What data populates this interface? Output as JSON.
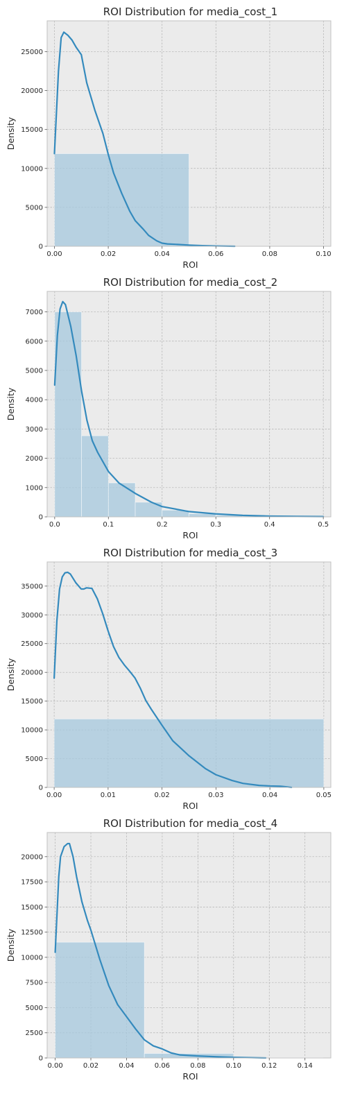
{
  "colors": {
    "panel_bg": "#ebebeb",
    "grid": "#b0b0b0",
    "bar_fill": "#a6c8dd",
    "kde_line": "#348abd",
    "frame": "#c2c2c2",
    "text": "#262626"
  },
  "chart_data": [
    {
      "type": "bar",
      "title": "ROI Distribution for media_cost_1",
      "xlabel": "ROI",
      "ylabel": "Density",
      "xlim": [
        -0.0027,
        0.1027
      ],
      "ylim": [
        0,
        28960
      ],
      "xticks": [
        0.0,
        0.02,
        0.04,
        0.06,
        0.08,
        0.1
      ],
      "xtick_labels": [
        "0.00",
        "0.02",
        "0.04",
        "0.06",
        "0.08",
        "0.10"
      ],
      "yticks": [
        0,
        5000,
        10000,
        15000,
        20000,
        25000
      ],
      "ytick_labels": [
        "0",
        "5000",
        "10000",
        "15000",
        "20000",
        "25000"
      ],
      "grid": true,
      "bars": [
        {
          "x0": 0.0,
          "x1": 0.05,
          "height": 11900
        }
      ],
      "kde": {
        "x": [
          0.0,
          0.0015,
          0.0025,
          0.0035,
          0.005,
          0.0065,
          0.008,
          0.01,
          0.012,
          0.015,
          0.018,
          0.02,
          0.022,
          0.025,
          0.028,
          0.03,
          0.033,
          0.035,
          0.038,
          0.04,
          0.042,
          0.045,
          0.05,
          0.055,
          0.06,
          0.067
        ],
        "y": [
          11900,
          22500,
          26800,
          27500,
          27100,
          26500,
          25600,
          24600,
          21000,
          17500,
          14500,
          11800,
          9400,
          6800,
          4500,
          3300,
          2200,
          1400,
          700,
          400,
          300,
          250,
          150,
          80,
          40,
          0
        ]
      }
    },
    {
      "type": "bar",
      "title": "ROI Distribution for media_cost_2",
      "xlabel": "ROI",
      "ylabel": "Density",
      "xlim": [
        -0.014,
        0.514
      ],
      "ylim": [
        0,
        7700
      ],
      "xticks": [
        0.0,
        0.1,
        0.2,
        0.3,
        0.4,
        0.5
      ],
      "xtick_labels": [
        "0.0",
        "0.1",
        "0.2",
        "0.3",
        "0.4",
        "0.5"
      ],
      "yticks": [
        0,
        1000,
        2000,
        3000,
        4000,
        5000,
        6000,
        7000
      ],
      "ytick_labels": [
        "0",
        "1000",
        "2000",
        "3000",
        "4000",
        "5000",
        "6000",
        "7000"
      ],
      "grid": true,
      "bars": [
        {
          "x0": 0.0,
          "x1": 0.05,
          "height": 7000
        },
        {
          "x0": 0.05,
          "x1": 0.1,
          "height": 2770
        },
        {
          "x0": 0.1,
          "x1": 0.15,
          "height": 1160
        },
        {
          "x0": 0.15,
          "x1": 0.2,
          "height": 500
        },
        {
          "x0": 0.2,
          "x1": 0.25,
          "height": 230
        },
        {
          "x0": 0.25,
          "x1": 0.3,
          "height": 110
        },
        {
          "x0": 0.3,
          "x1": 0.35,
          "height": 55
        },
        {
          "x0": 0.35,
          "x1": 0.4,
          "height": 30
        },
        {
          "x0": 0.4,
          "x1": 0.45,
          "height": 15
        },
        {
          "x0": 0.45,
          "x1": 0.5,
          "height": 10
        }
      ],
      "kde": {
        "x": [
          0.0,
          0.005,
          0.01,
          0.015,
          0.02,
          0.03,
          0.04,
          0.05,
          0.06,
          0.07,
          0.08,
          0.1,
          0.12,
          0.15,
          0.18,
          0.2,
          0.25,
          0.3,
          0.35,
          0.4,
          0.45,
          0.5
        ],
        "y": [
          4500,
          6200,
          7100,
          7350,
          7250,
          6500,
          5500,
          4300,
          3300,
          2600,
          2200,
          1550,
          1150,
          800,
          500,
          350,
          180,
          100,
          50,
          25,
          15,
          8
        ]
      }
    },
    {
      "type": "bar",
      "title": "ROI Distribution for media_cost_3",
      "xlabel": "ROI",
      "ylabel": "Density",
      "xlim": [
        -0.0013,
        0.0513
      ],
      "ylim": [
        0,
        39200
      ],
      "xticks": [
        0.0,
        0.01,
        0.02,
        0.03,
        0.04,
        0.05
      ],
      "xtick_labels": [
        "0.00",
        "0.01",
        "0.02",
        "0.03",
        "0.04",
        "0.05"
      ],
      "yticks": [
        0,
        5000,
        10000,
        15000,
        20000,
        25000,
        30000,
        35000
      ],
      "ytick_labels": [
        "0",
        "5000",
        "10000",
        "15000",
        "20000",
        "25000",
        "30000",
        "35000"
      ],
      "grid": true,
      "bars": [
        {
          "x0": 0.0,
          "x1": 0.05,
          "height": 11900
        }
      ],
      "kde": {
        "x": [
          0.0,
          0.0005,
          0.001,
          0.0015,
          0.002,
          0.0025,
          0.003,
          0.004,
          0.005,
          0.0055,
          0.006,
          0.007,
          0.008,
          0.009,
          0.01,
          0.011,
          0.012,
          0.013,
          0.014,
          0.015,
          0.016,
          0.017,
          0.018,
          0.02,
          0.022,
          0.025,
          0.028,
          0.03,
          0.033,
          0.035,
          0.038,
          0.04,
          0.042,
          0.044
        ],
        "y": [
          19000,
          29000,
          34500,
          36600,
          37300,
          37400,
          37100,
          35600,
          34500,
          34500,
          34700,
          34600,
          32800,
          30200,
          27200,
          24500,
          22600,
          21300,
          20200,
          19000,
          17200,
          15100,
          13600,
          10800,
          8100,
          5500,
          3300,
          2200,
          1200,
          700,
          350,
          250,
          200,
          0
        ]
      }
    },
    {
      "type": "bar",
      "title": "ROI Distribution for media_cost_4",
      "xlabel": "ROI",
      "ylabel": "Density",
      "xlim": [
        -0.0045,
        0.1545
      ],
      "ylim": [
        0,
        22400
      ],
      "xticks": [
        0.0,
        0.02,
        0.04,
        0.06,
        0.08,
        0.1,
        0.12,
        0.14
      ],
      "xtick_labels": [
        "0.00",
        "0.02",
        "0.04",
        "0.06",
        "0.08",
        "0.10",
        "0.12",
        "0.14"
      ],
      "yticks": [
        0,
        2500,
        5000,
        7500,
        10000,
        12500,
        15000,
        17500,
        20000
      ],
      "ytick_labels": [
        "0",
        "2500",
        "5000",
        "7500",
        "10000",
        "12500",
        "15000",
        "17500",
        "20000"
      ],
      "grid": true,
      "bars": [
        {
          "x0": 0.0,
          "x1": 0.05,
          "height": 11500
        },
        {
          "x0": 0.05,
          "x1": 0.1,
          "height": 450
        },
        {
          "x0": 0.1,
          "x1": 0.15,
          "height": 40
        }
      ],
      "kde": {
        "x": [
          0.0,
          0.002,
          0.003,
          0.005,
          0.007,
          0.008,
          0.01,
          0.012,
          0.015,
          0.018,
          0.02,
          0.025,
          0.03,
          0.035,
          0.04,
          0.045,
          0.05,
          0.055,
          0.06,
          0.065,
          0.07,
          0.08,
          0.09,
          0.1,
          0.11,
          0.118
        ],
        "y": [
          10500,
          18000,
          20000,
          21000,
          21300,
          21300,
          20000,
          18000,
          15500,
          13700,
          12700,
          9800,
          7200,
          5300,
          4100,
          2900,
          1800,
          1200,
          900,
          500,
          300,
          200,
          120,
          60,
          30,
          0
        ]
      }
    }
  ]
}
